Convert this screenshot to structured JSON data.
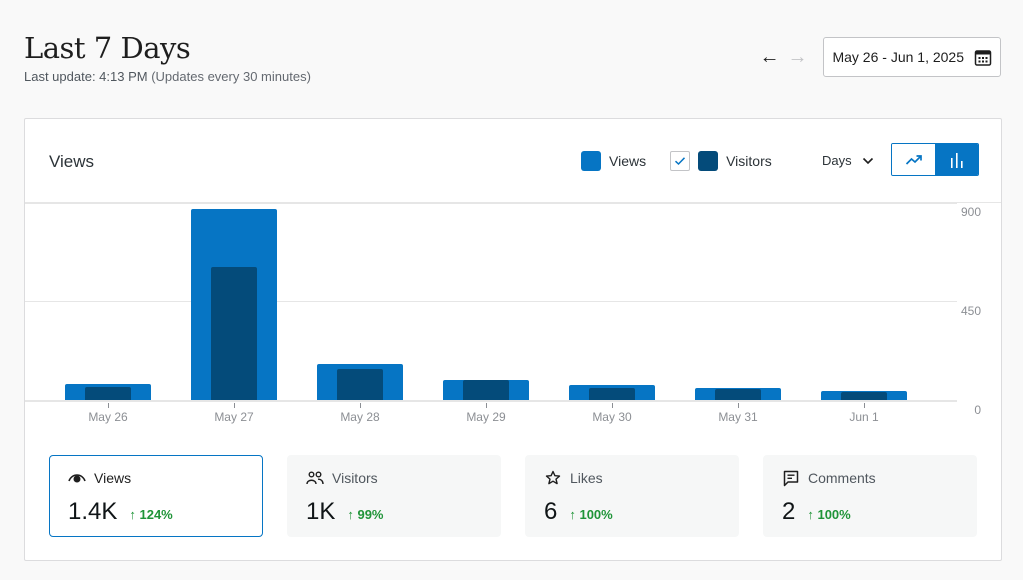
{
  "header": {
    "title": "Last 7 Days",
    "last_update_label": "Last update: 4:13 PM",
    "update_frequency": "(Updates every 30 minutes)"
  },
  "date_nav": {
    "prev_icon": "←",
    "next_icon": "→",
    "range_label": "May 26 - Jun 1, 2025",
    "calendar_icon": "calendar-icon"
  },
  "chart_card": {
    "title": "Views",
    "legend": [
      {
        "label": "Views",
        "color": "#0675c4"
      },
      {
        "label": "Visitors",
        "color": "#044b7a",
        "checked": true
      }
    ],
    "period_label": "Days",
    "chart_types": [
      {
        "name": "line",
        "active": false
      },
      {
        "name": "bar",
        "active": true
      }
    ]
  },
  "chart_data": {
    "type": "bar",
    "title": "Views",
    "categories": [
      "May 26",
      "May 27",
      "May 28",
      "May 29",
      "May 30",
      "May 31",
      "Jun 1"
    ],
    "series": [
      {
        "name": "Views",
        "color": "#0675c4",
        "values": [
          73,
          873,
          164,
          91,
          68,
          55,
          41
        ]
      },
      {
        "name": "Visitors",
        "color": "#044b7a",
        "values": [
          59,
          609,
          141,
          91,
          55,
          50,
          36
        ]
      }
    ],
    "yticks": [
      "900",
      "450",
      "0"
    ],
    "ylim": [
      0,
      900
    ],
    "xlabel": "",
    "ylabel": "",
    "grid": true,
    "legend_position": "top-right"
  },
  "stats": [
    {
      "label": "Views",
      "icon": "eye-icon",
      "value": "1.4K",
      "change": "↑ 124%",
      "selected": true
    },
    {
      "label": "Visitors",
      "icon": "people-icon",
      "value": "1K",
      "change": "↑ 99%",
      "selected": false
    },
    {
      "label": "Likes",
      "icon": "star-icon",
      "value": "6",
      "change": "↑ 100%",
      "selected": false
    },
    {
      "label": "Comments",
      "icon": "comment-icon",
      "value": "2",
      "change": "↑ 100%",
      "selected": false
    }
  ]
}
